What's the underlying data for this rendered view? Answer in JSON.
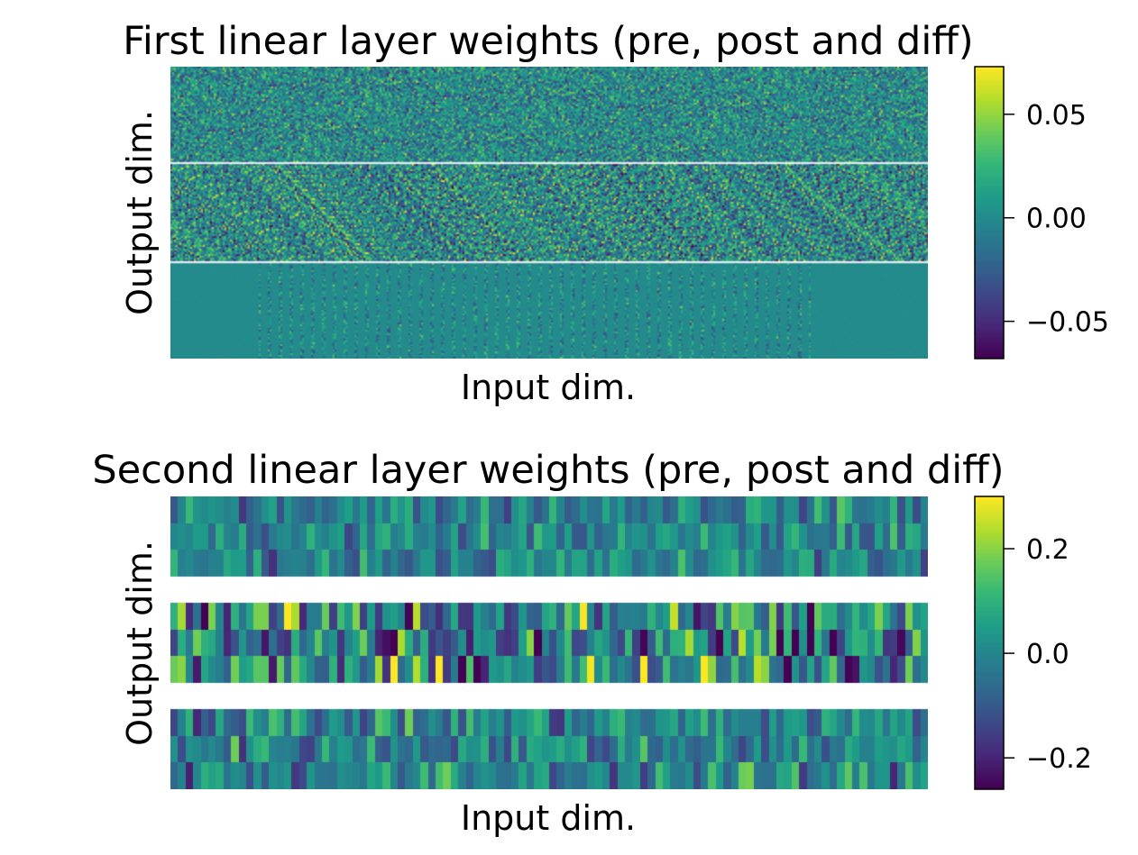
{
  "chart_data": [
    {
      "type": "heatmap",
      "title": "First linear layer weights (pre, post and diff)",
      "xlabel": "Input dim.",
      "ylabel": "Output dim.",
      "panels": [
        "pre",
        "post",
        "diff"
      ],
      "colormap": "viridis",
      "colorbar": {
        "range": [
          -0.068,
          0.073
        ],
        "ticks": [
          0.05,
          0.0,
          -0.05
        ],
        "tick_labels": [
          "0.05",
          "0.00",
          "−0.05"
        ]
      },
      "grid": false
    },
    {
      "type": "heatmap",
      "title": "Second linear layer weights (pre, post and diff)",
      "xlabel": "Input dim.",
      "ylabel": "Output dim.",
      "panels": [
        "pre",
        "post",
        "diff"
      ],
      "rows_per_panel": 3,
      "columns": 100,
      "colormap": "viridis",
      "colorbar": {
        "range": [
          -0.26,
          0.3
        ],
        "ticks": [
          0.2,
          0.0,
          -0.2
        ],
        "tick_labels": [
          "0.2",
          "0.0",
          "−0.2"
        ]
      },
      "grid": false
    }
  ]
}
